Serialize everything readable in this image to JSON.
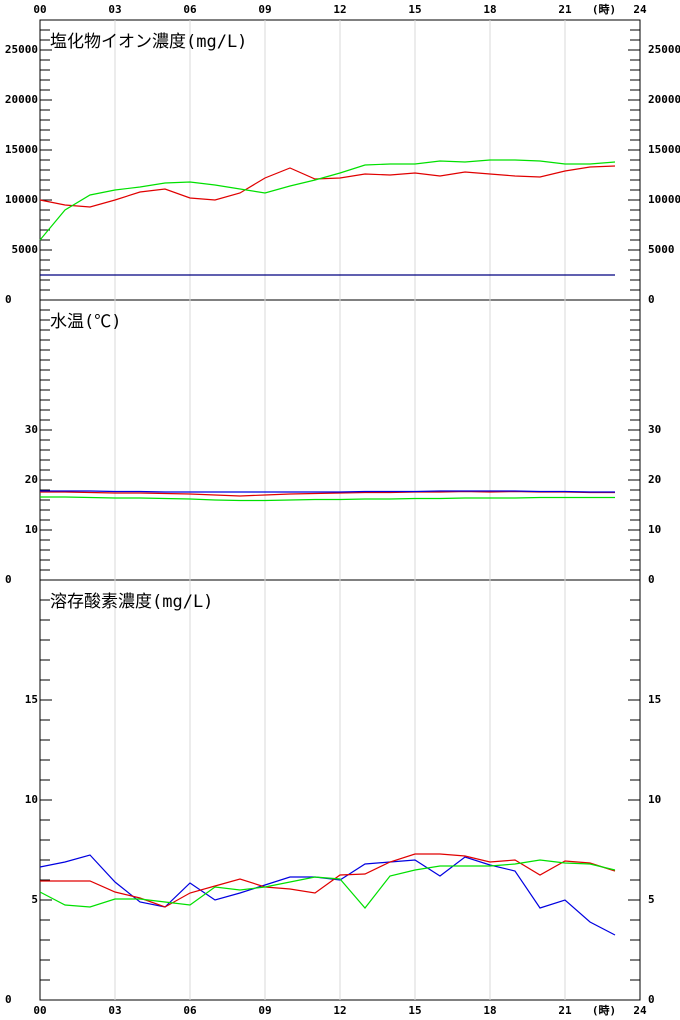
{
  "chart_data": [
    {
      "type": "line",
      "title": "塩化物イオン濃度(mg/L)",
      "x_unit": "(時)",
      "x": [
        0,
        1,
        2,
        3,
        4,
        5,
        6,
        7,
        8,
        9,
        10,
        11,
        12,
        13,
        14,
        15,
        16,
        17,
        18,
        19,
        20,
        21,
        22,
        23
      ],
      "xlim": [
        0,
        24
      ],
      "xticks": [
        {
          "value": 0,
          "label": "00"
        },
        {
          "value": 3,
          "label": "03"
        },
        {
          "value": 6,
          "label": "06"
        },
        {
          "value": 9,
          "label": "09"
        },
        {
          "value": 12,
          "label": "12"
        },
        {
          "value": 15,
          "label": "15"
        },
        {
          "value": 18,
          "label": "18"
        },
        {
          "value": 21,
          "label": "21"
        },
        {
          "value": 24,
          "label": "24"
        }
      ],
      "ylim": [
        0,
        28000
      ],
      "yticks": [
        0,
        5000,
        10000,
        15000,
        20000,
        25000
      ],
      "minor_tick_step": 1000,
      "grid": true,
      "series": [
        {
          "color": "#e00000",
          "values": [
            10000,
            9500,
            9300,
            10000,
            10800,
            11100,
            10200,
            10000,
            10700,
            12200,
            13200,
            12100,
            12200,
            12600,
            12500,
            12700,
            12400,
            12800,
            12600,
            12400,
            12300,
            12900,
            13300,
            13400
          ]
        },
        {
          "color": "#00e000",
          "values": [
            6000,
            9000,
            10500,
            11000,
            11300,
            11700,
            11800,
            11500,
            11100,
            10700,
            11400,
            12000,
            12700,
            13500,
            13600,
            13600,
            13900,
            13800,
            14000,
            14000,
            13900,
            13600,
            13600,
            13800
          ]
        },
        {
          "color": "#000080",
          "values": [
            2500,
            2500,
            2500,
            2500,
            2500,
            2500,
            2500,
            2500,
            2500,
            2500,
            2500,
            2500,
            2500,
            2500,
            2500,
            2500,
            2500,
            2500,
            2500,
            2500,
            2500,
            2500,
            2500,
            2500
          ]
        }
      ]
    },
    {
      "type": "line",
      "title": "水温(℃)",
      "x": [
        0,
        1,
        2,
        3,
        4,
        5,
        6,
        7,
        8,
        9,
        10,
        11,
        12,
        13,
        14,
        15,
        16,
        17,
        18,
        19,
        20,
        21,
        22,
        23
      ],
      "xlim": [
        0,
        24
      ],
      "ylim": [
        0,
        56
      ],
      "yticks": [
        0,
        10,
        20,
        30
      ],
      "minor_tick_step": 2,
      "grid": true,
      "series": [
        {
          "color": "#e00000",
          "values": [
            17.6,
            17.6,
            17.5,
            17.4,
            17.4,
            17.3,
            17.2,
            17.0,
            16.8,
            17.0,
            17.2,
            17.3,
            17.4,
            17.5,
            17.5,
            17.6,
            17.6,
            17.7,
            17.6,
            17.7,
            17.6,
            17.6,
            17.5,
            17.5
          ]
        },
        {
          "color": "#0000e0",
          "values": [
            17.8,
            17.8,
            17.8,
            17.7,
            17.7,
            17.6,
            17.6,
            17.6,
            17.6,
            17.6,
            17.6,
            17.6,
            17.6,
            17.7,
            17.7,
            17.7,
            17.8,
            17.8,
            17.8,
            17.8,
            17.7,
            17.7,
            17.6,
            17.6
          ]
        },
        {
          "color": "#00e000",
          "values": [
            16.6,
            16.6,
            16.5,
            16.4,
            16.4,
            16.3,
            16.2,
            16.0,
            15.9,
            15.9,
            16.0,
            16.1,
            16.1,
            16.2,
            16.2,
            16.3,
            16.3,
            16.4,
            16.4,
            16.4,
            16.5,
            16.5,
            16.5,
            16.5
          ]
        }
      ]
    },
    {
      "type": "line",
      "title": "溶存酸素濃度(mg/L)",
      "x": [
        0,
        1,
        2,
        3,
        4,
        5,
        6,
        7,
        8,
        9,
        10,
        11,
        12,
        13,
        14,
        15,
        16,
        17,
        18,
        19,
        20,
        21,
        22,
        23
      ],
      "xlim": [
        0,
        24
      ],
      "ylim": [
        0,
        21
      ],
      "yticks": [
        0,
        5,
        10,
        15
      ],
      "minor_tick_step": 1,
      "grid": true,
      "series": [
        {
          "color": "#0000e0",
          "values": [
            6.65,
            6.9,
            7.25,
            5.9,
            4.9,
            4.65,
            5.85,
            5.0,
            5.35,
            5.75,
            6.15,
            6.15,
            6.0,
            6.8,
            6.9,
            7.0,
            6.2,
            7.15,
            6.75,
            6.45,
            4.6,
            5.0,
            3.9,
            3.25
          ]
        },
        {
          "color": "#e00000",
          "values": [
            5.95,
            5.95,
            5.95,
            5.4,
            5.1,
            4.65,
            5.35,
            5.7,
            6.05,
            5.65,
            5.55,
            5.35,
            6.25,
            6.3,
            6.9,
            7.3,
            7.3,
            7.2,
            6.9,
            7.0,
            6.25,
            6.95,
            6.85,
            6.45
          ]
        },
        {
          "color": "#00e000",
          "values": [
            5.4,
            4.75,
            4.65,
            5.05,
            5.05,
            4.9,
            4.75,
            5.65,
            5.5,
            5.65,
            5.9,
            6.15,
            6.05,
            4.6,
            6.2,
            6.5,
            6.7,
            6.7,
            6.7,
            6.8,
            7.0,
            6.85,
            6.8,
            6.5
          ]
        }
      ]
    }
  ]
}
